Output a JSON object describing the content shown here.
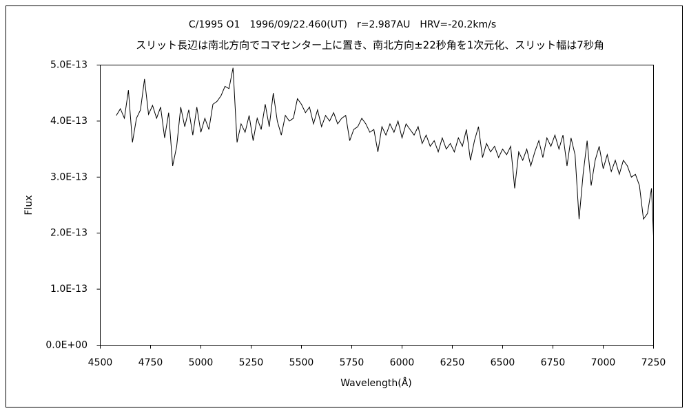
{
  "chart_data": {
    "type": "line",
    "title": "C/1995 O1　1996/09/22.460(UT)　r=2.987AU　HRV=-20.2km/s",
    "subtitle": "スリット長辺は南北方向でコマセンター上に置き、南北方向±22秒角を1次元化、スリット幅は7秒角",
    "x_label": "Wavelength(Å)",
    "y_label": "Flux",
    "x": [
      4580,
      4600,
      4620,
      4640,
      4660,
      4680,
      4700,
      4720,
      4740,
      4760,
      4780,
      4800,
      4820,
      4840,
      4860,
      4880,
      4900,
      4920,
      4940,
      4960,
      4980,
      5000,
      5020,
      5040,
      5060,
      5080,
      5100,
      5120,
      5140,
      5160,
      5180,
      5200,
      5220,
      5240,
      5260,
      5280,
      5300,
      5320,
      5340,
      5360,
      5380,
      5400,
      5420,
      5440,
      5460,
      5480,
      5500,
      5520,
      5540,
      5560,
      5580,
      5600,
      5620,
      5640,
      5660,
      5680,
      5700,
      5720,
      5740,
      5760,
      5780,
      5800,
      5820,
      5840,
      5860,
      5880,
      5900,
      5920,
      5940,
      5960,
      5980,
      6000,
      6020,
      6040,
      6060,
      6080,
      6100,
      6120,
      6140,
      6160,
      6180,
      6200,
      6220,
      6240,
      6260,
      6280,
      6300,
      6320,
      6340,
      6360,
      6380,
      6400,
      6420,
      6440,
      6460,
      6480,
      6500,
      6520,
      6540,
      6560,
      6580,
      6600,
      6620,
      6640,
      6660,
      6680,
      6700,
      6720,
      6740,
      6760,
      6780,
      6800,
      6820,
      6840,
      6860,
      6880,
      6900,
      6920,
      6940,
      6960,
      6980,
      7000,
      7020,
      7040,
      7060,
      7080,
      7100,
      7120,
      7140,
      7160,
      7180,
      7200,
      7220,
      7240,
      7250
    ],
    "values": [
      4.1e-13,
      4.22e-13,
      4.05e-13,
      4.55e-13,
      3.62e-13,
      4.05e-13,
      4.2e-13,
      4.75e-13,
      4.12e-13,
      4.28e-13,
      4.05e-13,
      4.25e-13,
      3.7e-13,
      4.15e-13,
      3.2e-13,
      3.55e-13,
      4.25e-13,
      3.9e-13,
      4.2e-13,
      3.75e-13,
      4.25e-13,
      3.8e-13,
      4.05e-13,
      3.85e-13,
      4.3e-13,
      4.35e-13,
      4.45e-13,
      4.62e-13,
      4.58e-13,
      4.95e-13,
      3.62e-13,
      3.95e-13,
      3.8e-13,
      4.1e-13,
      3.65e-13,
      4.05e-13,
      3.85e-13,
      4.3e-13,
      3.9e-13,
      4.5e-13,
      4e-13,
      3.75e-13,
      4.1e-13,
      4e-13,
      4.05e-13,
      4.4e-13,
      4.3e-13,
      4.15e-13,
      4.25e-13,
      3.95e-13,
      4.2e-13,
      3.9e-13,
      4.1e-13,
      4e-13,
      4.15e-13,
      3.95e-13,
      4.05e-13,
      4.1e-13,
      3.65e-13,
      3.85e-13,
      3.9e-13,
      4.05e-13,
      3.95e-13,
      3.8e-13,
      3.85e-13,
      3.45e-13,
      3.9e-13,
      3.75e-13,
      3.95e-13,
      3.8e-13,
      4e-13,
      3.7e-13,
      3.95e-13,
      3.85e-13,
      3.75e-13,
      3.9e-13,
      3.6e-13,
      3.75e-13,
      3.55e-13,
      3.65e-13,
      3.45e-13,
      3.7e-13,
      3.5e-13,
      3.6e-13,
      3.45e-13,
      3.7e-13,
      3.55e-13,
      3.85e-13,
      3.3e-13,
      3.65e-13,
      3.9e-13,
      3.35e-13,
      3.6e-13,
      3.45e-13,
      3.55e-13,
      3.35e-13,
      3.5e-13,
      3.4e-13,
      3.55e-13,
      2.8e-13,
      3.45e-13,
      3.3e-13,
      3.5e-13,
      3.2e-13,
      3.45e-13,
      3.65e-13,
      3.35e-13,
      3.7e-13,
      3.55e-13,
      3.75e-13,
      3.5e-13,
      3.75e-13,
      3.2e-13,
      3.7e-13,
      3.4e-13,
      2.25e-13,
      3.05e-13,
      3.65e-13,
      2.85e-13,
      3.3e-13,
      3.55e-13,
      3.15e-13,
      3.4e-13,
      3.1e-13,
      3.3e-13,
      3.05e-13,
      3.3e-13,
      3.2e-13,
      3e-13,
      3.05e-13,
      2.85e-13,
      2.25e-13,
      2.35e-13,
      2.8e-13,
      1.95e-13
    ],
    "color": "#000000",
    "xlim": [
      4500,
      7250
    ],
    "xticks": [
      4500,
      4750,
      5000,
      5250,
      5500,
      5750,
      6000,
      6250,
      6500,
      6750,
      7000,
      7250
    ],
    "ylim": [
      0,
      5e-13
    ],
    "yticks": [
      {
        "value": 0,
        "label": "0.0E+00"
      },
      {
        "value": 1e-13,
        "label": "1.0E-13"
      },
      {
        "value": 2e-13,
        "label": "2.0E-13"
      },
      {
        "value": 3e-13,
        "label": "3.0E-13"
      },
      {
        "value": 4e-13,
        "label": "4.0E-13"
      },
      {
        "value": 5e-13,
        "label": "5.0E-13"
      }
    ],
    "grid": false
  }
}
